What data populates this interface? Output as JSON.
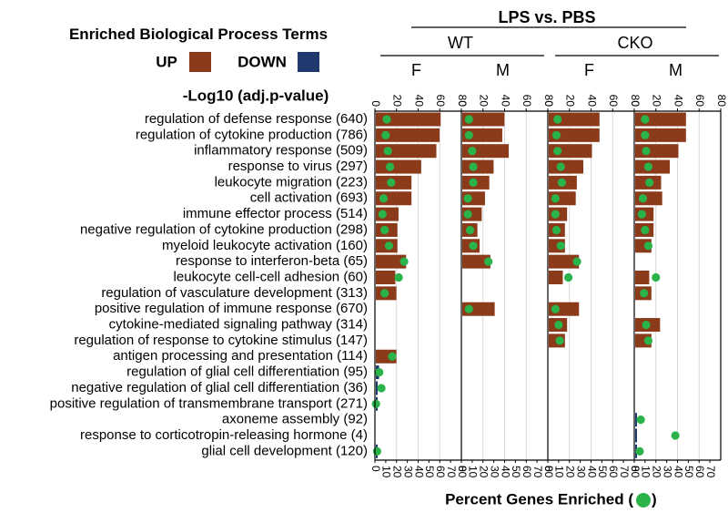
{
  "chart_data": {
    "type": "bar",
    "title": "LPS vs. PBS",
    "legend_title": "Enriched Biological Process Terms",
    "legend": [
      {
        "label": "UP",
        "color": "#8B3A1A"
      },
      {
        "label": "DOWN",
        "color": "#1F3A6E"
      }
    ],
    "dot_color": "#2BB34B",
    "top_axis_label": "-Log10 (adj.p-value)",
    "bottom_axis_label": "Percent Genes Enriched (",
    "bottom_axis_label_end": ")",
    "groups": [
      {
        "label": "WT",
        "sub": [
          "F",
          "M"
        ]
      },
      {
        "label": "CKO",
        "sub": [
          "F",
          "M"
        ]
      }
    ],
    "top_ticks": [
      "0",
      "20",
      "40",
      "60",
      "80"
    ],
    "bottom_ticks": [
      "0",
      "10",
      "20",
      "30",
      "40",
      "50",
      "60",
      "70",
      "80"
    ],
    "bottom_ticks_last": [
      "0",
      "10",
      "20",
      "30",
      "40",
      "50",
      "60",
      "70"
    ],
    "top_range": [
      0,
      80
    ],
    "bottom_range": [
      0,
      80
    ],
    "categories": [
      "regulation of defense response (640)",
      "regulation of cytokine production (786)",
      "inflammatory response (509)",
      "response to virus (297)",
      "leukocyte migration (223)",
      "cell activation (693)",
      "immune effector process (514)",
      "negative regulation of cytokine production (298)",
      "myeloid leukocyte activation (160)",
      "response to interferon-beta (65)",
      "leukocyte cell-cell adhesion (60)",
      "regulation of vasculature development (313)",
      "positive regulation of immune response (670)",
      "cytokine-mediated signaling pathway (314)",
      "regulation of response to cytokine stimulus (147)",
      "antigen processing and presentation (114)",
      "regulation of glial cell differentiation (95)",
      "negative regulation of glial cell differentiation (36)",
      "positive regulation of transmembrane transport (271)",
      "axoneme assembly (92)",
      "response to corticotropin-releasing hormone (4)",
      "glial cell development (120)"
    ],
    "series": [
      {
        "name": "WT F",
        "bars": [
          {
            "row": 0,
            "value": 60,
            "dir": "up"
          },
          {
            "row": 1,
            "value": 59,
            "dir": "up"
          },
          {
            "row": 2,
            "value": 56,
            "dir": "up"
          },
          {
            "row": 3,
            "value": 42,
            "dir": "up"
          },
          {
            "row": 4,
            "value": 33,
            "dir": "up"
          },
          {
            "row": 5,
            "value": 33,
            "dir": "up"
          },
          {
            "row": 6,
            "value": 21,
            "dir": "up"
          },
          {
            "row": 7,
            "value": 20,
            "dir": "up"
          },
          {
            "row": 8,
            "value": 20,
            "dir": "up"
          },
          {
            "row": 9,
            "value": 28,
            "dir": "up"
          },
          {
            "row": 10,
            "value": 18,
            "dir": "up"
          },
          {
            "row": 11,
            "value": 19,
            "dir": "up"
          },
          {
            "row": 15,
            "value": 19,
            "dir": "up"
          },
          {
            "row": 16,
            "value": 3,
            "dir": "down"
          },
          {
            "row": 17,
            "value": 1,
            "dir": "down"
          },
          {
            "row": 18,
            "value": 1,
            "dir": "down"
          },
          {
            "row": 21,
            "value": 1,
            "dir": "down"
          }
        ],
        "dots": [
          {
            "row": 0,
            "value": 11
          },
          {
            "row": 1,
            "value": 10
          },
          {
            "row": 2,
            "value": 12
          },
          {
            "row": 3,
            "value": 14
          },
          {
            "row": 4,
            "value": 15
          },
          {
            "row": 5,
            "value": 8
          },
          {
            "row": 6,
            "value": 7
          },
          {
            "row": 7,
            "value": 9
          },
          {
            "row": 8,
            "value": 13
          },
          {
            "row": 9,
            "value": 27
          },
          {
            "row": 10,
            "value": 22
          },
          {
            "row": 11,
            "value": 9
          },
          {
            "row": 15,
            "value": 16
          },
          {
            "row": 16,
            "value": 4
          },
          {
            "row": 17,
            "value": 6
          },
          {
            "row": 18,
            "value": 1
          },
          {
            "row": 21,
            "value": 2
          }
        ]
      },
      {
        "name": "WT M",
        "bars": [
          {
            "row": 0,
            "value": 39,
            "dir": "up"
          },
          {
            "row": 1,
            "value": 37,
            "dir": "up"
          },
          {
            "row": 2,
            "value": 43,
            "dir": "up"
          },
          {
            "row": 3,
            "value": 29,
            "dir": "up"
          },
          {
            "row": 4,
            "value": 25,
            "dir": "up"
          },
          {
            "row": 5,
            "value": 21,
            "dir": "up"
          },
          {
            "row": 6,
            "value": 18,
            "dir": "up"
          },
          {
            "row": 7,
            "value": 14,
            "dir": "up"
          },
          {
            "row": 8,
            "value": 16,
            "dir": "up"
          },
          {
            "row": 9,
            "value": 26,
            "dir": "up"
          },
          {
            "row": 12,
            "value": 30,
            "dir": "up"
          }
        ],
        "dots": [
          {
            "row": 0,
            "value": 7
          },
          {
            "row": 1,
            "value": 7
          },
          {
            "row": 2,
            "value": 10
          },
          {
            "row": 3,
            "value": 11
          },
          {
            "row": 4,
            "value": 11
          },
          {
            "row": 5,
            "value": 6
          },
          {
            "row": 6,
            "value": 6
          },
          {
            "row": 7,
            "value": 8
          },
          {
            "row": 8,
            "value": 11
          },
          {
            "row": 9,
            "value": 25
          },
          {
            "row": 12,
            "value": 7
          }
        ]
      },
      {
        "name": "CKO F",
        "bars": [
          {
            "row": 0,
            "value": 47,
            "dir": "up"
          },
          {
            "row": 1,
            "value": 47,
            "dir": "up"
          },
          {
            "row": 2,
            "value": 40,
            "dir": "up"
          },
          {
            "row": 3,
            "value": 32,
            "dir": "up"
          },
          {
            "row": 4,
            "value": 26,
            "dir": "up"
          },
          {
            "row": 5,
            "value": 25,
            "dir": "up"
          },
          {
            "row": 6,
            "value": 17,
            "dir": "up"
          },
          {
            "row": 7,
            "value": 15,
            "dir": "up"
          },
          {
            "row": 8,
            "value": 15,
            "dir": "up"
          },
          {
            "row": 9,
            "value": 28,
            "dir": "up"
          },
          {
            "row": 10,
            "value": 13,
            "dir": "up"
          },
          {
            "row": 12,
            "value": 28,
            "dir": "up"
          },
          {
            "row": 13,
            "value": 17,
            "dir": "up"
          },
          {
            "row": 14,
            "value": 15,
            "dir": "up"
          }
        ],
        "dots": [
          {
            "row": 0,
            "value": 9
          },
          {
            "row": 1,
            "value": 8
          },
          {
            "row": 2,
            "value": 9
          },
          {
            "row": 3,
            "value": 12
          },
          {
            "row": 4,
            "value": 13
          },
          {
            "row": 5,
            "value": 7
          },
          {
            "row": 6,
            "value": 7
          },
          {
            "row": 7,
            "value": 8
          },
          {
            "row": 8,
            "value": 12
          },
          {
            "row": 9,
            "value": 27
          },
          {
            "row": 10,
            "value": 19
          },
          {
            "row": 12,
            "value": 7
          },
          {
            "row": 13,
            "value": 10
          },
          {
            "row": 14,
            "value": 11
          }
        ]
      },
      {
        "name": "CKO M",
        "bars": [
          {
            "row": 0,
            "value": 47,
            "dir": "up"
          },
          {
            "row": 1,
            "value": 47,
            "dir": "up"
          },
          {
            "row": 2,
            "value": 40,
            "dir": "up"
          },
          {
            "row": 3,
            "value": 32,
            "dir": "up"
          },
          {
            "row": 4,
            "value": 24,
            "dir": "up"
          },
          {
            "row": 5,
            "value": 25,
            "dir": "up"
          },
          {
            "row": 6,
            "value": 17,
            "dir": "up"
          },
          {
            "row": 7,
            "value": 17,
            "dir": "up"
          },
          {
            "row": 8,
            "value": 15,
            "dir": "up"
          },
          {
            "row": 10,
            "value": 13,
            "dir": "up"
          },
          {
            "row": 11,
            "value": 15,
            "dir": "up"
          },
          {
            "row": 13,
            "value": 23,
            "dir": "up"
          },
          {
            "row": 14,
            "value": 15,
            "dir": "up"
          },
          {
            "row": 19,
            "value": 1,
            "dir": "down"
          },
          {
            "row": 20,
            "value": 1,
            "dir": "down"
          },
          {
            "row": 21,
            "value": 1,
            "dir": "down"
          }
        ],
        "dots": [
          {
            "row": 0,
            "value": 10
          },
          {
            "row": 1,
            "value": 10
          },
          {
            "row": 2,
            "value": 11
          },
          {
            "row": 3,
            "value": 13
          },
          {
            "row": 4,
            "value": 14
          },
          {
            "row": 5,
            "value": 8
          },
          {
            "row": 6,
            "value": 7
          },
          {
            "row": 7,
            "value": 10
          },
          {
            "row": 8,
            "value": 13
          },
          {
            "row": 10,
            "value": 20
          },
          {
            "row": 11,
            "value": 9
          },
          {
            "row": 13,
            "value": 11
          },
          {
            "row": 14,
            "value": 13
          },
          {
            "row": 19,
            "value": 6
          },
          {
            "row": 20,
            "value": 38
          },
          {
            "row": 21,
            "value": 5
          }
        ]
      }
    ]
  }
}
